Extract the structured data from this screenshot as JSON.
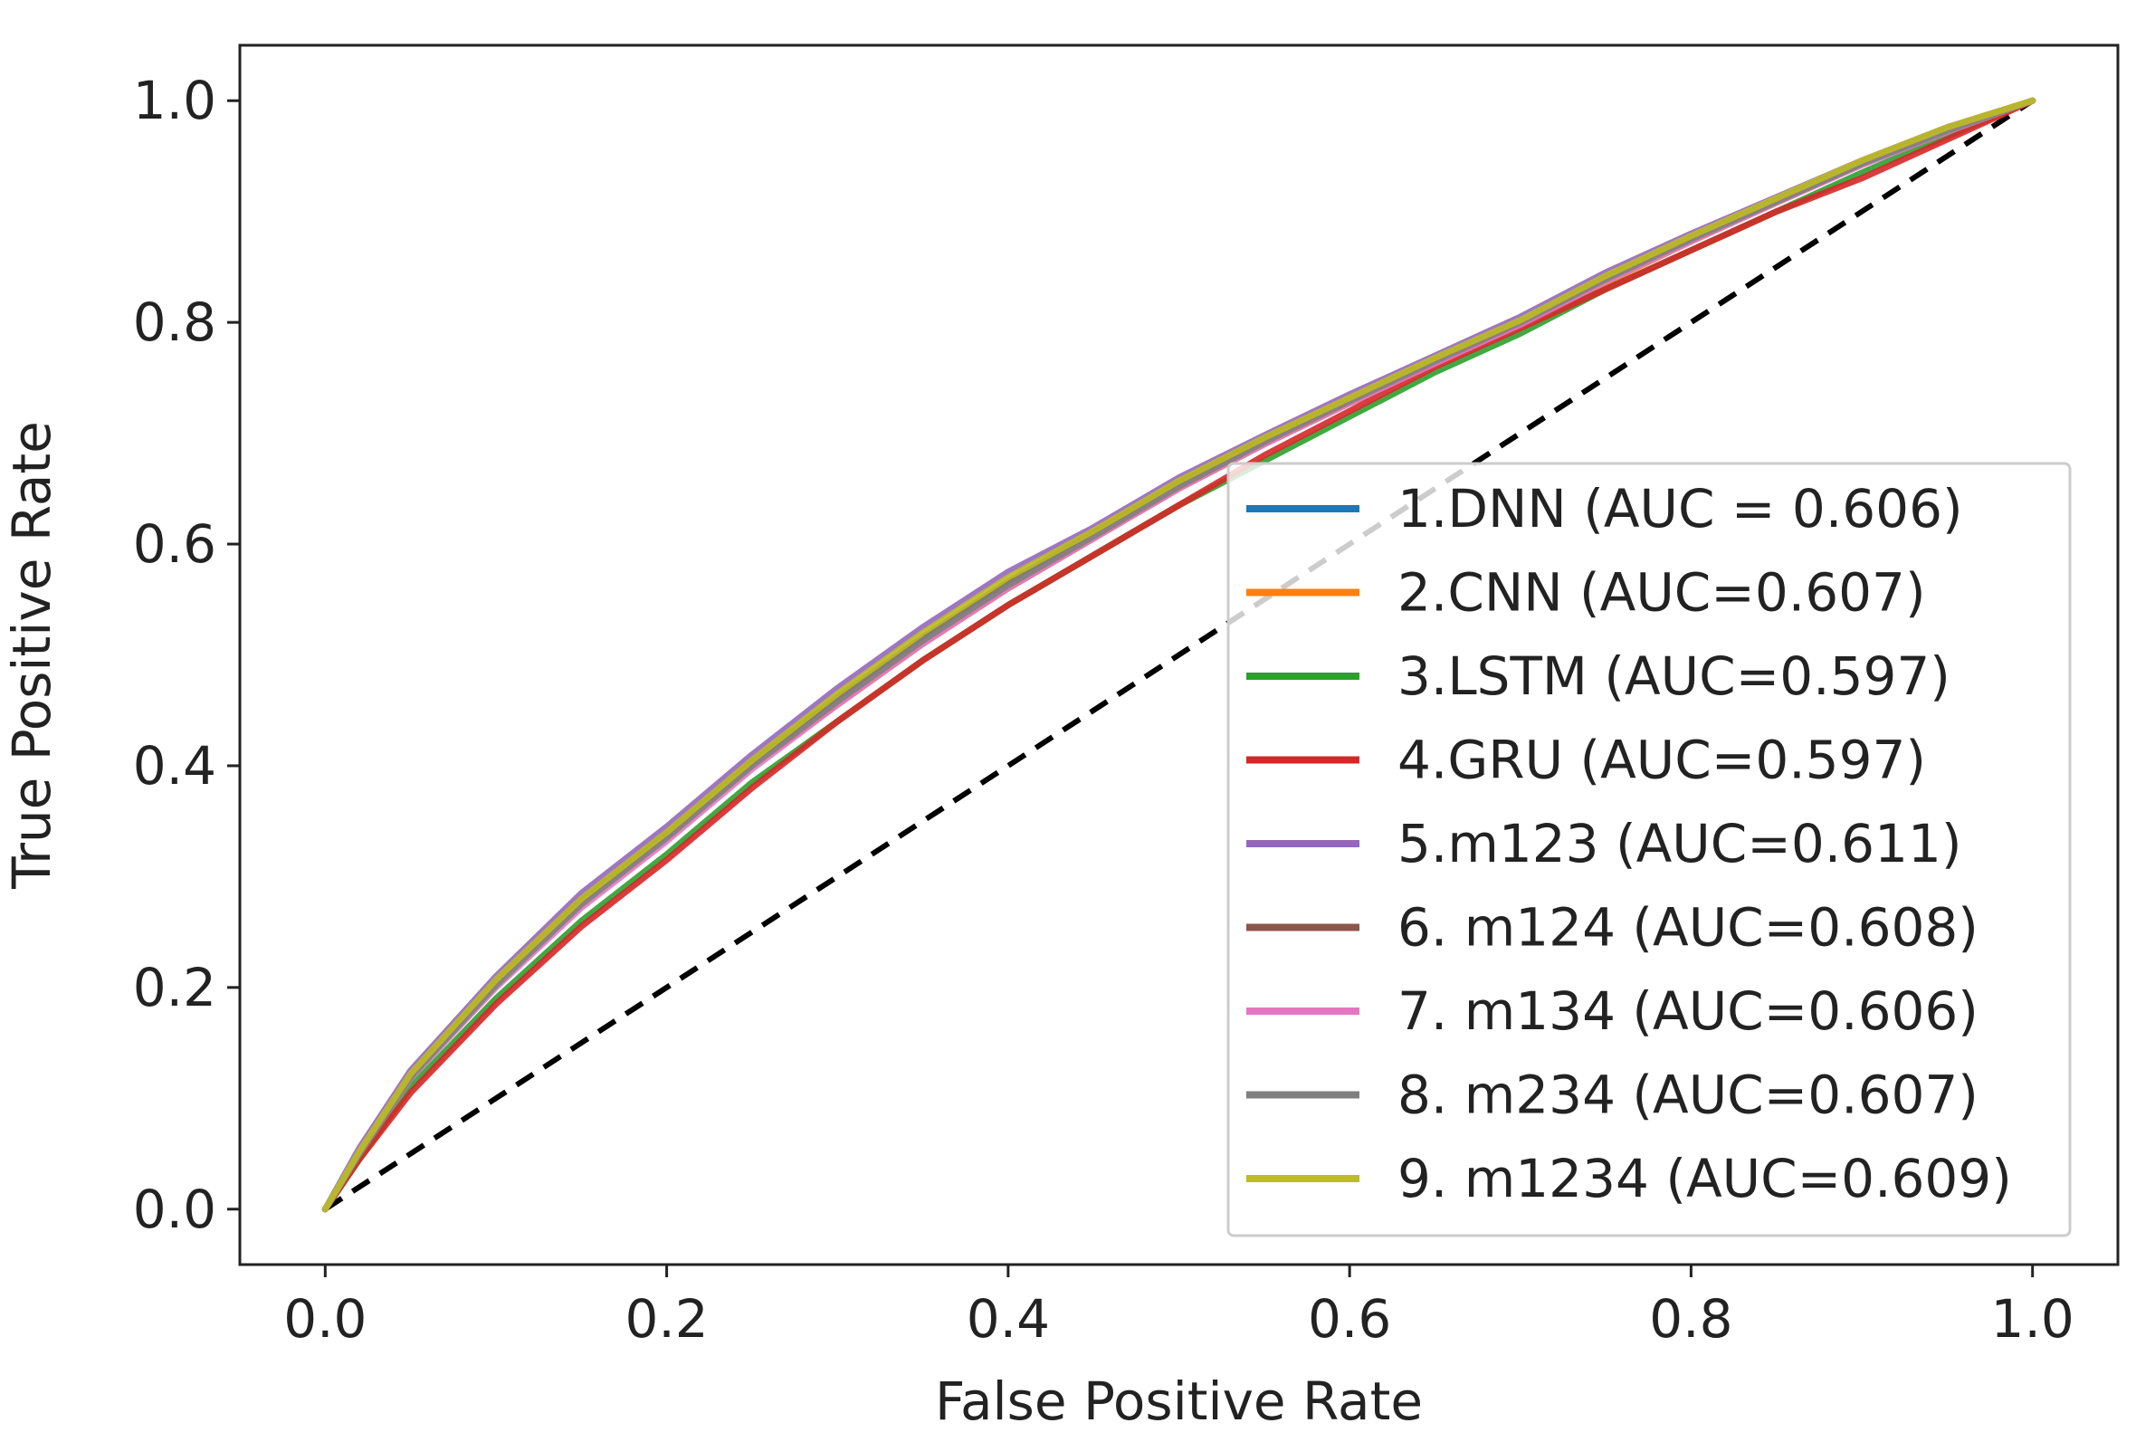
{
  "chart_data": {
    "type": "line",
    "title": "",
    "xlabel": "False Positive Rate",
    "ylabel": "True Positive Rate",
    "xlim": [
      -0.05,
      1.05
    ],
    "ylim": [
      -0.05,
      1.05
    ],
    "xticks": [
      0.0,
      0.2,
      0.4,
      0.6,
      0.8,
      1.0
    ],
    "xtick_labels": [
      "0.0",
      "0.2",
      "0.4",
      "0.6",
      "0.8",
      "1.0"
    ],
    "yticks": [
      0.0,
      0.2,
      0.4,
      0.6,
      0.8,
      1.0
    ],
    "ytick_labels": [
      "0.0",
      "0.2",
      "0.4",
      "0.6",
      "0.8",
      "1.0"
    ],
    "grid": false,
    "legend_position": "lower-right",
    "reference_line": {
      "name": "chance",
      "x": [
        0.0,
        1.0
      ],
      "y": [
        0.0,
        1.0
      ],
      "color": "#000000",
      "style": "dashed"
    },
    "x": [
      0.0,
      0.02,
      0.05,
      0.1,
      0.15,
      0.2,
      0.25,
      0.3,
      0.35,
      0.4,
      0.45,
      0.5,
      0.55,
      0.6,
      0.65,
      0.7,
      0.75,
      0.8,
      0.85,
      0.9,
      0.95,
      1.0
    ],
    "series": [
      {
        "name": "1.DNN (AUC = 0.606)",
        "color": "#1f77b4",
        "values": [
          0.0,
          0.05,
          0.12,
          0.205,
          0.28,
          0.34,
          0.405,
          0.46,
          0.515,
          0.565,
          0.61,
          0.655,
          0.695,
          0.73,
          0.765,
          0.8,
          0.84,
          0.875,
          0.91,
          0.945,
          0.975,
          1.0
        ]
      },
      {
        "name": "2.CNN (AUC=0.607)",
        "color": "#ff7f0e",
        "values": [
          0.0,
          0.05,
          0.12,
          0.205,
          0.275,
          0.335,
          0.4,
          0.455,
          0.51,
          0.56,
          0.605,
          0.65,
          0.69,
          0.727,
          0.762,
          0.797,
          0.836,
          0.873,
          0.908,
          0.943,
          0.973,
          1.0
        ]
      },
      {
        "name": "3.LSTM (AUC=0.597)",
        "color": "#2ca02c",
        "values": [
          0.0,
          0.045,
          0.11,
          0.19,
          0.26,
          0.32,
          0.385,
          0.44,
          0.495,
          0.545,
          0.59,
          0.635,
          0.675,
          0.715,
          0.755,
          0.79,
          0.83,
          0.865,
          0.9,
          0.935,
          0.968,
          1.0
        ]
      },
      {
        "name": "4.GRU (AUC=0.597)",
        "color": "#d62728",
        "values": [
          0.0,
          0.045,
          0.105,
          0.185,
          0.255,
          0.315,
          0.38,
          0.44,
          0.495,
          0.545,
          0.59,
          0.635,
          0.68,
          0.72,
          0.76,
          0.795,
          0.83,
          0.865,
          0.9,
          0.93,
          0.965,
          1.0
        ]
      },
      {
        "name": "5.m123 (AUC=0.611)",
        "color": "#9467bd",
        "values": [
          0.0,
          0.055,
          0.125,
          0.21,
          0.285,
          0.345,
          0.41,
          0.47,
          0.525,
          0.575,
          0.615,
          0.66,
          0.698,
          0.735,
          0.77,
          0.805,
          0.845,
          0.88,
          0.913,
          0.946,
          0.976,
          1.0
        ]
      },
      {
        "name": "6. m124 (AUC=0.608)",
        "color": "#8c564b",
        "values": [
          0.0,
          0.05,
          0.12,
          0.205,
          0.278,
          0.338,
          0.403,
          0.462,
          0.516,
          0.566,
          0.61,
          0.655,
          0.694,
          0.73,
          0.766,
          0.8,
          0.84,
          0.876,
          0.91,
          0.944,
          0.974,
          1.0
        ]
      },
      {
        "name": "7. m134 (AUC=0.606)",
        "color": "#e377c2",
        "values": [
          0.0,
          0.05,
          0.118,
          0.2,
          0.272,
          0.332,
          0.397,
          0.455,
          0.51,
          0.56,
          0.605,
          0.65,
          0.69,
          0.727,
          0.763,
          0.798,
          0.837,
          0.873,
          0.908,
          0.942,
          0.972,
          1.0
        ]
      },
      {
        "name": "8. m234 (AUC=0.607)",
        "color": "#7f7f7f",
        "values": [
          0.0,
          0.05,
          0.119,
          0.202,
          0.275,
          0.335,
          0.4,
          0.458,
          0.513,
          0.563,
          0.607,
          0.652,
          0.692,
          0.729,
          0.765,
          0.8,
          0.839,
          0.875,
          0.909,
          0.943,
          0.973,
          1.0
        ]
      },
      {
        "name": "9. m1234 (AUC=0.609)",
        "color": "#bcbd22",
        "values": [
          0.0,
          0.052,
          0.122,
          0.207,
          0.28,
          0.34,
          0.405,
          0.465,
          0.52,
          0.57,
          0.612,
          0.657,
          0.696,
          0.732,
          0.768,
          0.802,
          0.842,
          0.878,
          0.912,
          0.946,
          0.976,
          1.0
        ]
      }
    ]
  }
}
